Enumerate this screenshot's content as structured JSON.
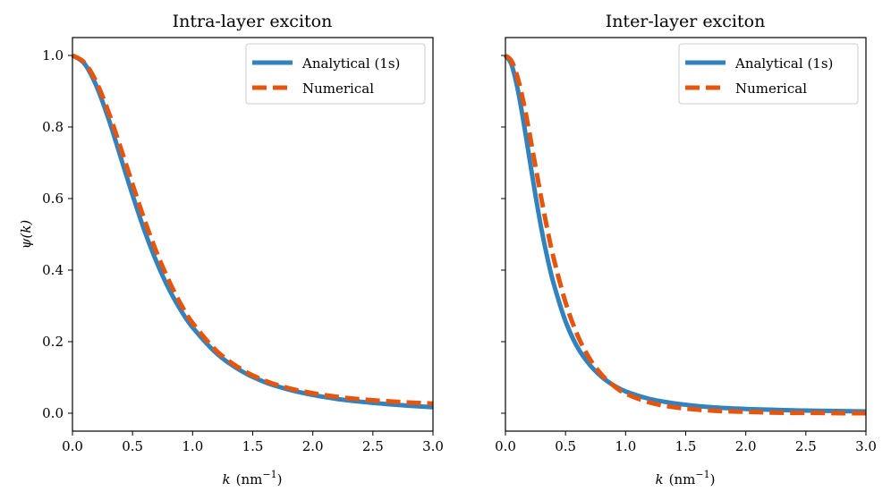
{
  "chart_data": [
    {
      "type": "line",
      "title": "Intra-layer exciton",
      "xlabel": "k (nm−1)",
      "xlabel_var": "k",
      "xlabel_unit": "(nm",
      "xlabel_exp": "−1",
      "xlabel_close": ")",
      "ylabel": "ψ(k)",
      "xlim": [
        0,
        3
      ],
      "ylim": [
        -0.05,
        1.05
      ],
      "xticks": [
        0,
        0.5,
        1,
        1.5,
        2,
        2.5,
        3
      ],
      "xtick_labels": [
        "0.0",
        "0.5",
        "1.0",
        "1.5",
        "2.0",
        "2.5",
        "3.0"
      ],
      "yticks": [
        0,
        0.2,
        0.4,
        0.6,
        0.8,
        1.0
      ],
      "ytick_labels": [
        "0.0",
        "0.2",
        "0.4",
        "0.6",
        "0.8",
        "1.0"
      ],
      "show_yticklabels": true,
      "legend": "top-right",
      "grid": false,
      "series": [
        {
          "name": "Analytical (1s)",
          "style": "solid",
          "color": "#3282bd",
          "x": [
            0,
            0.1,
            0.2,
            0.3,
            0.4,
            0.5,
            0.6,
            0.7,
            0.8,
            0.9,
            1.0,
            1.2,
            1.4,
            1.6,
            1.8,
            2.0,
            2.2,
            2.4,
            2.6,
            2.8,
            3.0
          ],
          "y": [
            1.0,
            0.977,
            0.914,
            0.823,
            0.717,
            0.61,
            0.51,
            0.423,
            0.349,
            0.289,
            0.24,
            0.167,
            0.119,
            0.087,
            0.066,
            0.051,
            0.04,
            0.032,
            0.026,
            0.021,
            0.017
          ]
        },
        {
          "name": "Numerical",
          "style": "dashed",
          "color": "#e6550d",
          "x": [
            0,
            0.1,
            0.2,
            0.3,
            0.4,
            0.5,
            0.6,
            0.7,
            0.8,
            0.9,
            1.0,
            1.2,
            1.4,
            1.6,
            1.8,
            2.0,
            2.2,
            2.4,
            2.6,
            2.8,
            3.0
          ],
          "y": [
            1.0,
            0.98,
            0.925,
            0.842,
            0.743,
            0.64,
            0.54,
            0.45,
            0.372,
            0.306,
            0.252,
            0.174,
            0.124,
            0.091,
            0.07,
            0.056,
            0.046,
            0.039,
            0.034,
            0.03,
            0.027
          ]
        }
      ]
    },
    {
      "type": "line",
      "title": "Inter-layer exciton",
      "xlabel": "k (nm−1)",
      "xlabel_var": "k",
      "xlabel_unit": "(nm",
      "xlabel_exp": "−1",
      "xlabel_close": ")",
      "ylabel": "",
      "xlim": [
        0,
        3
      ],
      "ylim": [
        -0.05,
        1.05
      ],
      "xticks": [
        0,
        0.5,
        1,
        1.5,
        2,
        2.5,
        3
      ],
      "xtick_labels": [
        "0.0",
        "0.5",
        "1.0",
        "1.5",
        "2.0",
        "2.5",
        "3.0"
      ],
      "yticks": [
        0,
        0.2,
        0.4,
        0.6,
        0.8,
        1.0
      ],
      "ytick_labels": [],
      "show_yticklabels": false,
      "legend": "top-right",
      "grid": false,
      "series": [
        {
          "name": "Analytical (1s)",
          "style": "solid",
          "color": "#3282bd",
          "x": [
            0,
            0.05,
            0.1,
            0.15,
            0.2,
            0.25,
            0.3,
            0.35,
            0.4,
            0.5,
            0.6,
            0.7,
            0.8,
            0.9,
            1.0,
            1.2,
            1.4,
            1.6,
            1.8,
            2.0,
            2.2,
            2.4,
            2.6,
            2.8,
            3.0
          ],
          "y": [
            1.0,
            0.975,
            0.909,
            0.816,
            0.712,
            0.609,
            0.514,
            0.433,
            0.364,
            0.257,
            0.184,
            0.136,
            0.102,
            0.078,
            0.061,
            0.04,
            0.028,
            0.02,
            0.015,
            0.012,
            0.01,
            0.008,
            0.007,
            0.006,
            0.005
          ]
        },
        {
          "name": "Numerical",
          "style": "dashed",
          "color": "#e6550d",
          "x": [
            0,
            0.05,
            0.1,
            0.15,
            0.2,
            0.25,
            0.3,
            0.35,
            0.4,
            0.5,
            0.6,
            0.7,
            0.8,
            0.9,
            1.0,
            1.2,
            1.4,
            1.6,
            1.8,
            2.0,
            2.2,
            2.4,
            2.6,
            2.8,
            3.0
          ],
          "y": [
            1.0,
            0.985,
            0.94,
            0.87,
            0.783,
            0.69,
            0.598,
            0.512,
            0.435,
            0.31,
            0.218,
            0.153,
            0.108,
            0.077,
            0.055,
            0.03,
            0.017,
            0.01,
            0.006,
            0.004,
            0.002,
            0.001,
            0.001,
            0.0,
            0.0
          ]
        }
      ]
    }
  ]
}
